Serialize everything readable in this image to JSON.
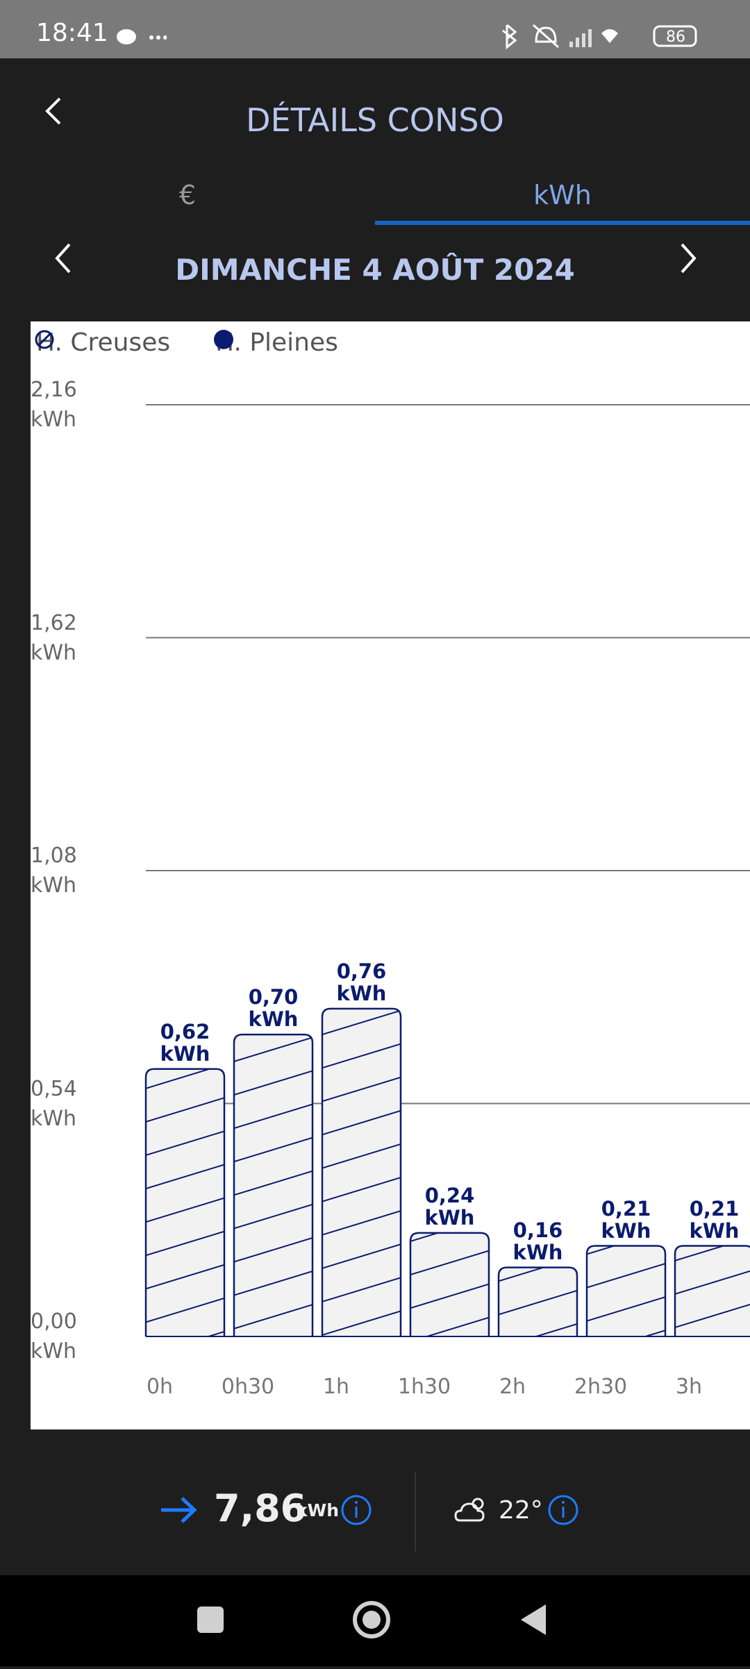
{
  "status_bar": {
    "time": "18:41",
    "battery": "86"
  },
  "header": {
    "title": "DÉTAILS CONSO"
  },
  "tabs": [
    "€",
    "kWh"
  ],
  "date_nav": {
    "date": "DIMANCHE 4 AOÛT 2024"
  },
  "chart_data": {
    "type": "bar",
    "categories": [
      "0h",
      "0h30",
      "1h",
      "1h30",
      "2h",
      "2h30",
      "3h"
    ],
    "series": [
      {
        "name": "H. Creuses",
        "color": "#0b1c6e",
        "hatched": true,
        "values": [
          0.62,
          0.7,
          0.76,
          0.24,
          0.16,
          0.21,
          0.21
        ],
        "value_labels": [
          "0,62 kWh",
          "0,70 kWh",
          "0,76 kWh",
          "0,24 kWh",
          "0,16 kWh",
          "0,21 kWh",
          "0,21 kWh"
        ]
      },
      {
        "name": "H. Pleines",
        "color": "#0b1c6e",
        "hatched": false,
        "values": [
          null,
          null,
          null,
          null,
          null,
          null,
          null
        ]
      }
    ],
    "ylim": [
      0,
      2.16
    ],
    "yticks": [
      {
        "value": 0,
        "label": "0,00 kWh"
      },
      {
        "value": 0.54,
        "label": "0,54 kWh"
      },
      {
        "value": 1.08,
        "label": "1,08 kWh"
      },
      {
        "value": 1.62,
        "label": "1,62 kWh"
      },
      {
        "value": 2.16,
        "label": "2,16 kWh"
      }
    ],
    "grid": true
  },
  "footer": {
    "total": "7,86",
    "unit": "kWh",
    "temperature": "22°"
  }
}
